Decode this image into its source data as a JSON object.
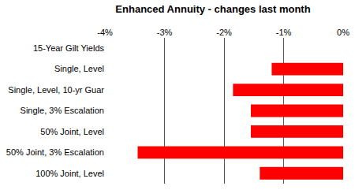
{
  "chart_data": {
    "type": "bar",
    "orientation": "horizontal",
    "title": "Enhanced Annuity - changes last month",
    "categories": [
      "15-Year Gilt Yields",
      "Single, Level",
      "Single, Level, 10-yr Guar",
      "Single, 3% Escalation",
      "50% Joint, Level",
      "50% Joint, 3% Escalation",
      "100% Joint, Level"
    ],
    "values": [
      null,
      -1.2,
      -1.85,
      -1.55,
      -1.55,
      -3.45,
      -1.4
    ],
    "color": "#ff0000",
    "xlim": [
      -4,
      0
    ],
    "xticks": [
      {
        "value": -4,
        "label": "-4%"
      },
      {
        "value": -3,
        "label": "-3%"
      },
      {
        "value": -2,
        "label": "-2%"
      },
      {
        "value": -1,
        "label": "-1%"
      },
      {
        "value": 0,
        "label": "0%"
      }
    ],
    "grid": true
  }
}
